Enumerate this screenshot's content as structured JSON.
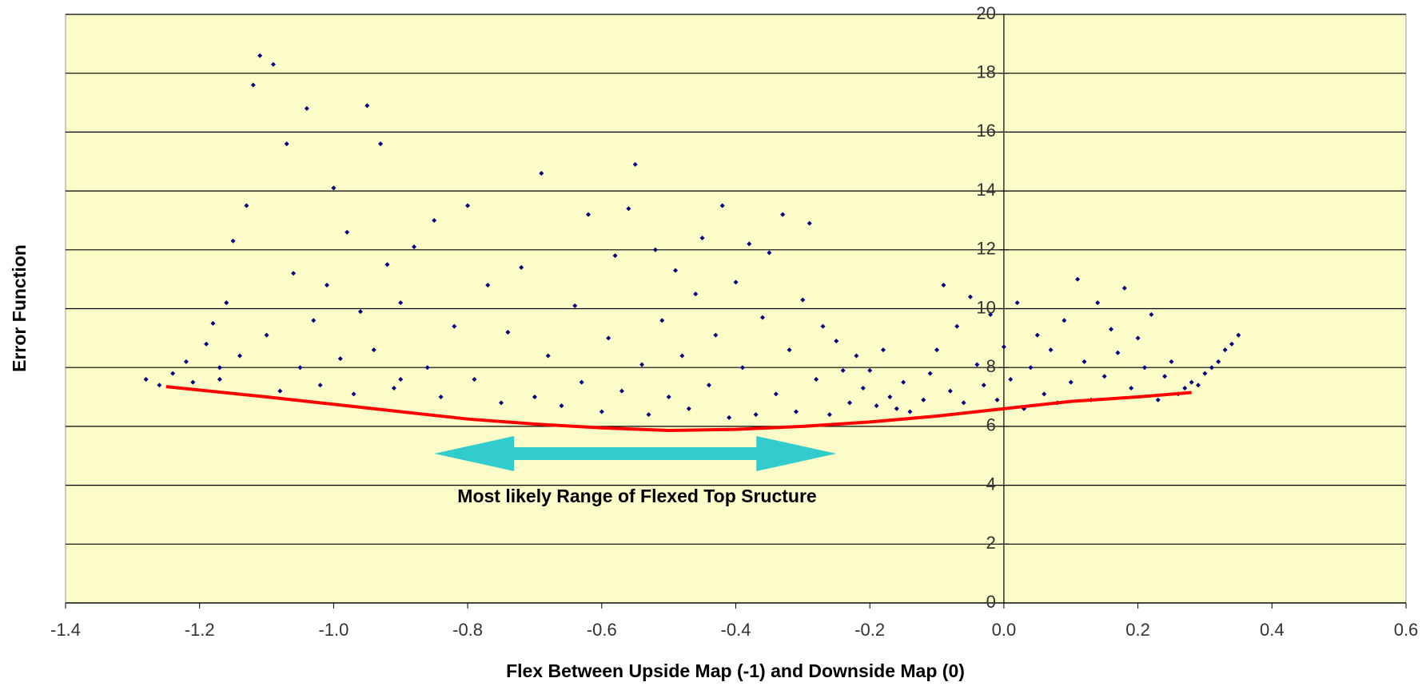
{
  "chart_data": {
    "type": "scatter",
    "x_label": "Flex Between Upside Map (-1) and Downside Map (0)",
    "y_label": "Error Function",
    "xlim": [
      -1.4,
      0.6
    ],
    "ylim": [
      0,
      20
    ],
    "xticks": [
      -1.4,
      -1.2,
      {
        "value": -1.0,
        "label": "-1.0"
      },
      -0.8,
      -0.6,
      -0.4,
      -0.2,
      {
        "value": 0,
        "label": "0.0"
      },
      0.2,
      0.4,
      0.6
    ],
    "yticks": [
      0,
      2,
      4,
      6,
      8,
      10,
      12,
      14,
      16,
      18,
      20
    ],
    "grid": true,
    "background": "#fcfcc8",
    "series": [
      {
        "type": "scatter",
        "color": "#000080",
        "x": [
          -1.28,
          -1.26,
          -1.24,
          -1.22,
          -1.21,
          -1.19,
          -1.18,
          -1.17,
          -1.16,
          -1.15,
          -1.14,
          -1.13,
          -1.12,
          -1.11,
          -1.1,
          -1.09,
          -1.08,
          -1.07,
          -1.06,
          -1.05,
          -1.04,
          -1.03,
          -1.02,
          -1.01,
          -1.0,
          -0.99,
          -0.98,
          -0.97,
          -0.96,
          -0.95,
          -0.94,
          -0.93,
          -0.92,
          -0.91,
          -0.9,
          -0.88,
          -0.86,
          -0.85,
          -0.84,
          -0.82,
          -0.8,
          -0.79,
          -0.77,
          -0.75,
          -0.74,
          -0.72,
          -0.7,
          -0.69,
          -0.68,
          -0.66,
          -0.64,
          -0.63,
          -0.62,
          -0.6,
          -0.59,
          -0.58,
          -0.57,
          -0.56,
          -0.55,
          -0.54,
          -0.53,
          -0.52,
          -0.51,
          -0.5,
          -0.49,
          -0.48,
          -0.47,
          -0.46,
          -0.45,
          -0.44,
          -0.43,
          -0.42,
          -0.41,
          -0.4,
          -0.39,
          -0.38,
          -0.37,
          -0.36,
          -0.35,
          -0.34,
          -0.33,
          -0.32,
          -0.31,
          -0.3,
          -0.29,
          -0.28,
          -0.27,
          -0.26,
          -0.25,
          -0.24,
          -0.23,
          -0.22,
          -0.21,
          -0.2,
          -0.19,
          -0.18,
          -0.17,
          -0.16,
          -0.15,
          -0.14,
          -0.12,
          -0.11,
          -0.1,
          -0.09,
          -0.08,
          -0.07,
          -0.06,
          -0.05,
          -0.04,
          -0.03,
          -0.02,
          -0.01,
          0.0,
          0.01,
          0.02,
          0.03,
          0.04,
          0.05,
          0.06,
          0.07,
          0.08,
          0.09,
          0.1,
          0.11,
          0.12,
          0.13,
          0.14,
          0.15,
          0.16,
          0.17,
          0.18,
          0.19,
          0.2,
          0.21,
          0.22,
          0.23,
          0.24,
          0.25,
          0.26,
          0.27,
          0.28,
          0.29,
          0.3,
          0.31,
          0.32,
          0.33,
          0.34,
          0.35,
          -1.17,
          -0.9
        ],
        "y": [
          7.6,
          7.4,
          7.8,
          8.2,
          7.5,
          8.8,
          9.5,
          7.6,
          10.2,
          12.3,
          8.4,
          13.5,
          17.6,
          18.6,
          9.1,
          18.3,
          7.2,
          15.6,
          11.2,
          8.0,
          16.8,
          9.6,
          7.4,
          10.8,
          14.1,
          8.3,
          12.6,
          7.1,
          9.9,
          16.9,
          8.6,
          15.6,
          11.5,
          7.3,
          10.2,
          12.1,
          8.0,
          13.0,
          7.0,
          9.4,
          13.5,
          7.6,
          10.8,
          6.8,
          9.2,
          11.4,
          7.0,
          14.6,
          8.4,
          6.7,
          10.1,
          7.5,
          13.2,
          6.5,
          9.0,
          11.8,
          7.2,
          13.4,
          14.9,
          8.1,
          6.4,
          12.0,
          9.6,
          7.0,
          11.3,
          8.4,
          6.6,
          10.5,
          12.4,
          7.4,
          9.1,
          13.5,
          6.3,
          10.9,
          8.0,
          12.2,
          6.4,
          9.7,
          11.9,
          7.1,
          13.2,
          8.6,
          6.5,
          10.3,
          12.9,
          7.6,
          9.4,
          6.4,
          8.9,
          7.9,
          6.8,
          8.4,
          7.3,
          7.9,
          6.7,
          8.6,
          7.0,
          6.6,
          7.5,
          6.5,
          6.9,
          7.8,
          8.6,
          10.8,
          7.2,
          9.4,
          6.8,
          10.4,
          8.1,
          7.4,
          9.8,
          6.9,
          8.7,
          7.6,
          10.2,
          6.6,
          8.0,
          9.1,
          7.1,
          8.6,
          6.8,
          9.6,
          7.5,
          11.0,
          8.2,
          6.9,
          10.2,
          7.7,
          9.3,
          8.5,
          10.7,
          7.3,
          9.0,
          8.0,
          9.8,
          6.9,
          7.7,
          8.2,
          7.1,
          7.3,
          7.5,
          7.4,
          7.8,
          8.0,
          8.2,
          8.6,
          8.8,
          9.1,
          8.0,
          7.6
        ]
      },
      {
        "type": "line",
        "color": "#ff0000",
        "x": [
          -1.25,
          -1.1,
          -1.0,
          -0.9,
          -0.8,
          -0.7,
          -0.6,
          -0.5,
          -0.4,
          -0.3,
          -0.2,
          -0.1,
          0.0,
          0.1,
          0.2,
          0.28
        ],
        "y": [
          7.35,
          7.0,
          6.75,
          6.5,
          6.25,
          6.08,
          5.95,
          5.86,
          5.9,
          6.0,
          6.15,
          6.35,
          6.6,
          6.85,
          7.0,
          7.15
        ]
      }
    ],
    "annotation": {
      "text": "Most likely Range of Flexed Top Sructure",
      "range": [
        -0.85,
        -0.25
      ],
      "color": "#33cccc"
    }
  }
}
